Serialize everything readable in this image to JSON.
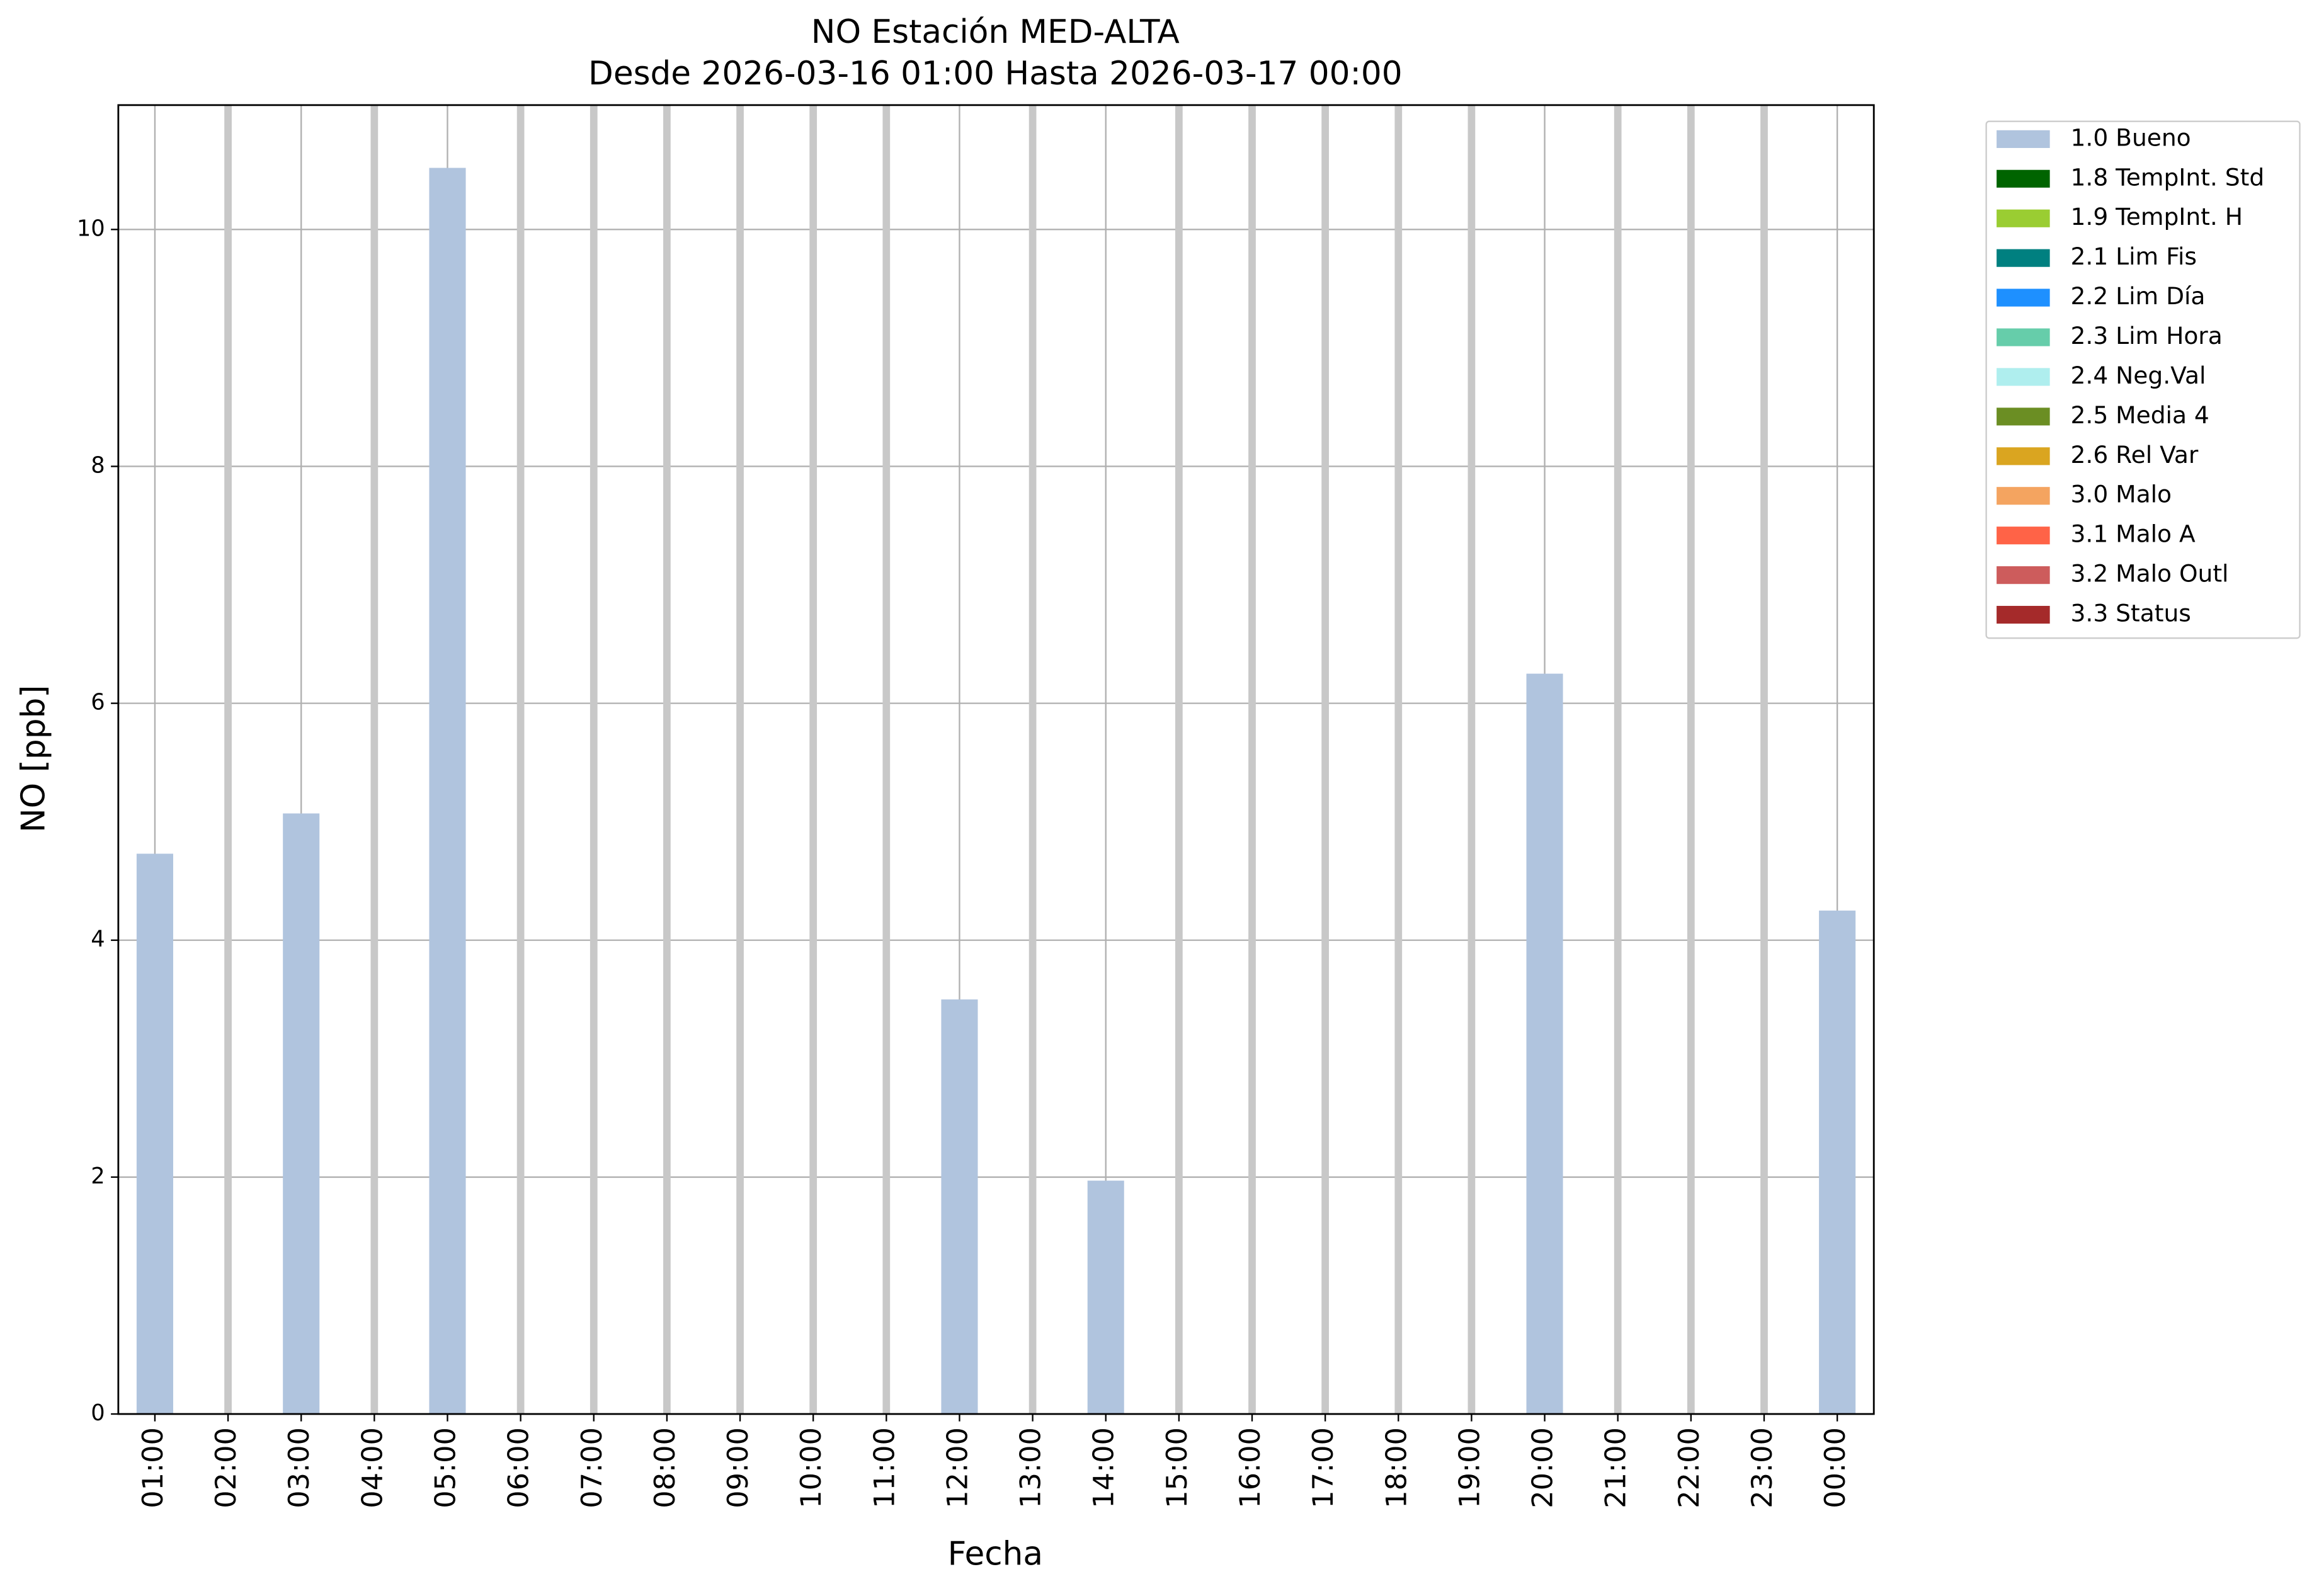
{
  "chart_data": {
    "type": "bar",
    "title": "NO Estación MED-ALTA",
    "subtitle": "Desde 2026-03-16 01:00 Hasta 2026-03-17 00:00",
    "x_label": "Fecha",
    "y_label": "NO [ppb]",
    "categories": [
      "01:00",
      "02:00",
      "03:00",
      "04:00",
      "05:00",
      "06:00",
      "07:00",
      "08:00",
      "09:00",
      "10:00",
      "11:00",
      "12:00",
      "13:00",
      "14:00",
      "15:00",
      "16:00",
      "17:00",
      "18:00",
      "19:00",
      "20:00",
      "21:00",
      "22:00",
      "23:00",
      "00:00"
    ],
    "series": [
      {
        "name": "1.0 Bueno",
        "color": "#b0c4de",
        "values": [
          4.73,
          null,
          5.07,
          null,
          10.52,
          null,
          null,
          null,
          null,
          null,
          null,
          3.5,
          null,
          1.97,
          null,
          null,
          null,
          null,
          null,
          6.25,
          null,
          null,
          null,
          4.25
        ]
      }
    ],
    "legend": [
      {
        "label": "1.0 Bueno",
        "color": "#b0c4de"
      },
      {
        "label": "1.8 TempInt. Std",
        "color": "#006400"
      },
      {
        "label": "1.9 TempInt. H",
        "color": "#9acd32"
      },
      {
        "label": "2.1 Lim Fis",
        "color": "#008080"
      },
      {
        "label": "2.2 Lim Día",
        "color": "#1e90ff"
      },
      {
        "label": "2.3 Lim Hora",
        "color": "#66cdaa"
      },
      {
        "label": "2.4 Neg.Val",
        "color": "#afeeee"
      },
      {
        "label": "2.5 Media 4",
        "color": "#6b8e23"
      },
      {
        "label": "2.6 Rel Var",
        "color": "#daa520"
      },
      {
        "label": "3.0 Malo",
        "color": "#f4a460"
      },
      {
        "label": "3.1 Malo A",
        "color": "#ff6347"
      },
      {
        "label": "3.2 Malo Outl",
        "color": "#cd5c5c"
      },
      {
        "label": "3.3 Status",
        "color": "#a52a2a"
      }
    ],
    "legend_position": "outside upper right",
    "ylim": [
      0,
      11.05
    ],
    "yticks": [
      0,
      2,
      4,
      6,
      8,
      10
    ],
    "grid": true
  }
}
